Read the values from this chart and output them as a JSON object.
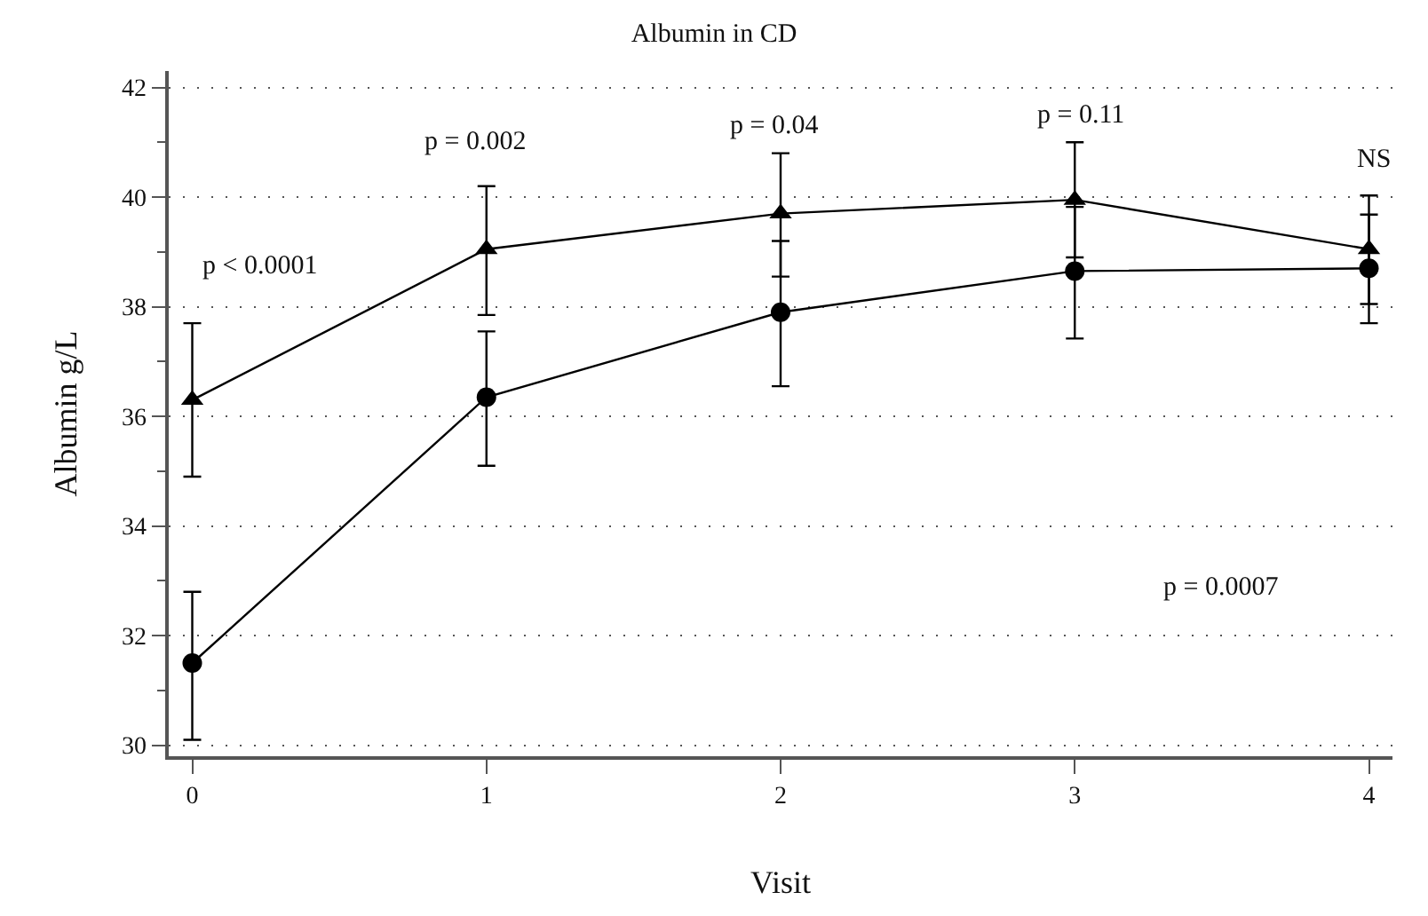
{
  "chart_data": {
    "type": "line",
    "title": "Albumin in CD",
    "xlabel": "Visit",
    "ylabel": "Albumin g/L",
    "x": [
      0,
      1,
      2,
      3,
      4
    ],
    "xlim": [
      -0.08,
      4.08
    ],
    "xticks": [
      0,
      1,
      2,
      3,
      4
    ],
    "ylim": [
      29.8,
      42.3
    ],
    "yticks": [
      30,
      32,
      34,
      36,
      38,
      40,
      42
    ],
    "grid": "y",
    "line_style": "solid",
    "series": [
      {
        "color": "#000000",
        "marker": "triangle",
        "values": [
          36.3,
          39.05,
          39.7,
          39.95,
          39.05
        ],
        "errors": [
          [
            34.9,
            37.7
          ],
          [
            37.85,
            40.2
          ],
          [
            38.55,
            40.8
          ],
          [
            38.9,
            41.0
          ],
          [
            38.05,
            40.03
          ]
        ]
      },
      {
        "color": "#000000",
        "marker": "circle",
        "values": [
          31.5,
          36.35,
          37.9,
          38.65,
          38.7
        ],
        "errors": [
          [
            30.1,
            32.8
          ],
          [
            35.1,
            37.55
          ],
          [
            36.55,
            39.2
          ],
          [
            37.42,
            39.82
          ],
          [
            37.7,
            39.68
          ]
        ]
      }
    ],
    "annotations": [
      "p < 0.0001",
      "p = 0.002",
      "p = 0.04",
      "p = 0.11",
      "NS",
      "p = 0.0007"
    ]
  }
}
